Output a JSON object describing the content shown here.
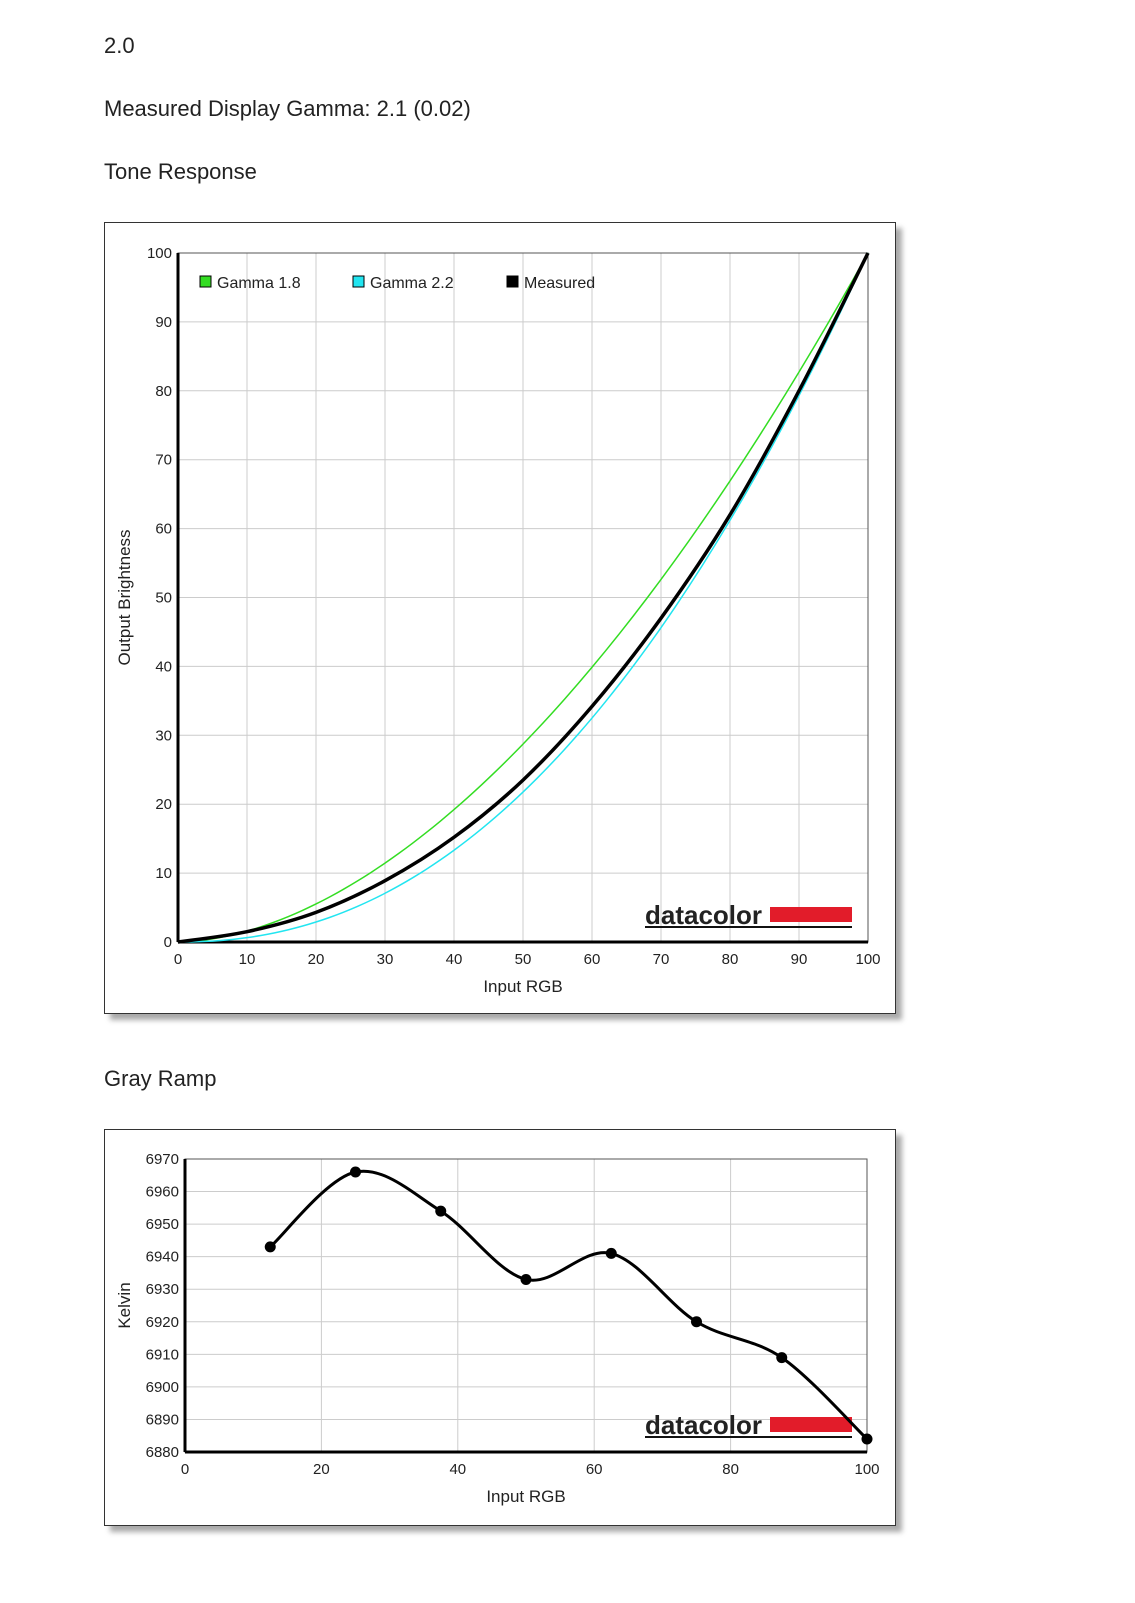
{
  "header": {
    "version": "2.0",
    "gamma_text": "Measured Display Gamma: 2.1 (0.02)"
  },
  "sections": {
    "tone": "Tone Response",
    "gray": "Gray Ramp"
  },
  "logo": "datacolor",
  "chart_data": [
    {
      "type": "line",
      "title": "Tone Response",
      "xlabel": "Input RGB",
      "ylabel": "Output Brightness",
      "xlim": [
        0,
        100
      ],
      "ylim": [
        0,
        100
      ],
      "xticks": [
        0,
        10,
        20,
        30,
        40,
        50,
        60,
        70,
        80,
        90,
        100
      ],
      "yticks": [
        0,
        10,
        20,
        30,
        40,
        50,
        60,
        70,
        80,
        90,
        100
      ],
      "grid": true,
      "legend": "top-left",
      "series": [
        {
          "name": "Gamma 1.8",
          "color": "#33dd22",
          "gamma": 1.8
        },
        {
          "name": "Gamma 2.2",
          "color": "#22e5f0",
          "gamma": 2.2
        },
        {
          "name": "Measured",
          "color": "#000000",
          "x": [
            0,
            10,
            20,
            30,
            40,
            50,
            60,
            70,
            80,
            90,
            100
          ],
          "y": [
            0,
            1.5,
            4.3,
            8.9,
            15.2,
            23.5,
            34.2,
            47,
            62,
            80,
            100
          ]
        }
      ]
    },
    {
      "type": "line",
      "title": "Gray Ramp",
      "xlabel": "Input RGB",
      "ylabel": "Kelvin",
      "xlim": [
        0,
        100
      ],
      "ylim": [
        6880,
        6970
      ],
      "xticks": [
        0,
        20,
        40,
        60,
        80,
        100
      ],
      "yticks": [
        6880,
        6890,
        6900,
        6910,
        6920,
        6930,
        6940,
        6950,
        6960,
        6970
      ],
      "grid": true,
      "series": [
        {
          "name": "Kelvin",
          "color": "#000000",
          "x": [
            12.5,
            25,
            37.5,
            50,
            62.5,
            75,
            87.5,
            100
          ],
          "y": [
            6943,
            6966,
            6954,
            6933,
            6941,
            6920,
            6909,
            6884
          ]
        }
      ]
    }
  ]
}
